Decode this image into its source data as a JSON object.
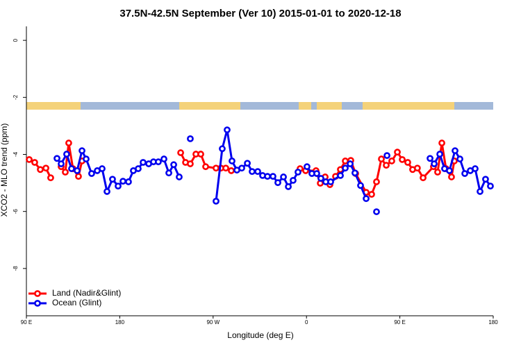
{
  "chart_data": {
    "type": "line",
    "title": "37.5N-42.5N September (Ver 10)   2015-01-01 to 2020-12-18",
    "x_label": "Longitude (deg E)",
    "y_label": "XCO2 - MLO trend (ppm)",
    "xlim": [
      90,
      540
    ],
    "ylim": [
      -9.78,
      0.49
    ],
    "xticks": [
      {
        "value": 90,
        "label": "90 E"
      },
      {
        "value": 180,
        "label": "180"
      },
      {
        "value": 270,
        "label": "90 W"
      },
      {
        "value": 360,
        "label": "0"
      },
      {
        "value": 450,
        "label": "90 E"
      },
      {
        "value": 540,
        "label": "180"
      }
    ],
    "yticks": [
      0,
      -2,
      -4,
      -6,
      -8
    ],
    "legend": "bottom-left",
    "series": [
      {
        "name": "Land (Nadir&Glint)",
        "color": "#ff0000",
        "x": [
          92.7,
          98,
          103.4,
          108.8,
          113.4,
          118.5,
          123.5,
          127.5,
          130.8,
          134.9,
          140.2,
          143.6,
          190,
          238.7,
          243.4,
          248,
          253.4,
          258.1,
          262.8,
          272.8,
          277.5,
          282.2,
          287.5,
          320,
          353.8,
          359.2,
          369.2,
          373.3,
          378,
          382.6,
          388,
          392.7,
          397.4,
          402.7,
          407.4,
          417.5,
          422.8,
          427.5,
          432.2,
          436.9,
          442.2,
          447.6,
          452.3,
          457.6,
          462.3,
          466.9,
          472.4,
          482.4,
          486.4,
          490.5,
          494.5,
          499.8,
          502.5
        ],
        "values": [
          -4.18,
          -4.28,
          -4.53,
          -4.48,
          -4.82,
          null,
          -4.43,
          -4.62,
          -3.6,
          -4.5,
          -4.77,
          -4.23,
          null,
          -3.94,
          -4.28,
          -4.33,
          -3.99,
          -3.99,
          -4.43,
          -4.48,
          -4.48,
          -4.48,
          -4.57,
          null,
          -4.5,
          -4.57,
          -4.57,
          -5.01,
          -4.79,
          -5.06,
          -4.77,
          -4.53,
          -4.23,
          -4.21,
          -4.67,
          -5.33,
          -5.4,
          -4.96,
          -4.16,
          -4.38,
          -4.23,
          -3.92,
          -4.18,
          -4.28,
          -4.53,
          -4.48,
          -4.82,
          -4.43,
          -4.62,
          -3.6,
          -4.5,
          -4.79,
          -4.23
        ]
      },
      {
        "name": "Ocean (Glint)",
        "color": "#0000ee",
        "x": [
          119.5,
          123.5,
          128.8,
          133.5,
          138.9,
          143.6,
          147.6,
          152.9,
          158.3,
          163,
          167.7,
          173,
          178.4,
          183.1,
          188.4,
          193.1,
          197.8,
          202.5,
          207.9,
          212.5,
          217.2,
          222.6,
          227.3,
          232,
          237.3,
          242,
          248,
          260,
          272.8,
          278.8,
          283.5,
          288.2,
          292.9,
          297.6,
          303,
          307.6,
          313,
          317.7,
          322.4,
          327.7,
          332.4,
          337.8,
          342.5,
          347.1,
          351.8,
          356,
          360.5,
          365.2,
          369.9,
          373.9,
          378.6,
          383.3,
          392.7,
          397.4,
          402.1,
          406.7,
          412.1,
          417.5,
          422,
          427.5,
          432,
          437.6,
          458,
          479.1,
          483.1,
          488.5,
          493.1,
          497.8,
          503.2,
          507.9,
          512.6,
          517.9,
          522.6,
          527.3,
          532.6,
          537.3
        ],
        "values": [
          -4.14,
          -4.33,
          -3.99,
          -4.5,
          -4.57,
          -3.87,
          -4.16,
          -4.67,
          -4.57,
          -4.5,
          -5.3,
          -4.87,
          -5.11,
          -4.94,
          -4.96,
          -4.57,
          -4.5,
          -4.28,
          -4.33,
          -4.26,
          -4.26,
          -4.16,
          -4.65,
          -4.36,
          -4.79,
          null,
          -3.45,
          null,
          -5.64,
          -3.8,
          -3.14,
          -4.23,
          -4.55,
          -4.48,
          -4.31,
          -4.6,
          -4.6,
          -4.74,
          -4.77,
          -4.77,
          -4.99,
          -4.79,
          -5.13,
          -4.91,
          -4.62,
          null,
          -4.43,
          -4.67,
          -4.67,
          -4.84,
          -4.96,
          -4.96,
          -4.74,
          -4.48,
          -4.33,
          -4.65,
          -5.09,
          -5.55,
          null,
          -6.01,
          null,
          -4.04,
          null,
          -4.14,
          -4.33,
          -3.99,
          -4.5,
          -4.57,
          -3.87,
          -4.16,
          -4.67,
          -4.57,
          -4.5,
          -5.3,
          -4.87,
          -5.11
        ]
      }
    ]
  }
}
